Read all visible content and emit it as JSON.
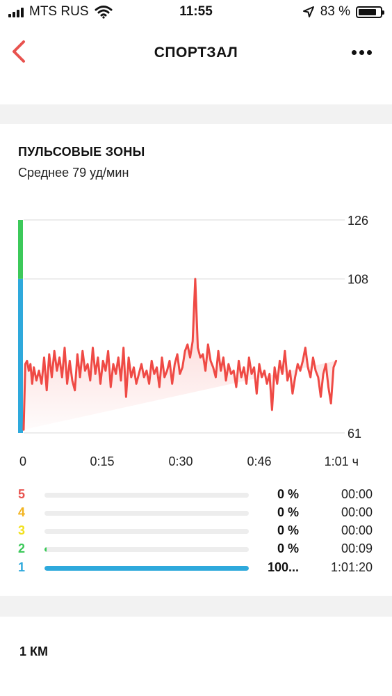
{
  "status_bar": {
    "carrier": "MTS RUS",
    "time": "11:55",
    "battery_text": "83 %",
    "battery_level": 0.83,
    "icons": [
      "signal-icon",
      "wifi-icon",
      "location-arrow-icon",
      "battery-icon"
    ]
  },
  "nav": {
    "title": "СПОРТЗАЛ",
    "back_icon": "chevron-left-icon",
    "more_icon": "ellipsis-icon",
    "accent": "#e8524e"
  },
  "heart_zones": {
    "title": "ПУЛЬСОВЫЕ ЗОНЫ",
    "average": "Среднее 79 уд/мин",
    "zones": [
      {
        "num": "5",
        "percent": "0 %",
        "time": "00:00",
        "fraction": 0.0,
        "color": "#e8524e"
      },
      {
        "num": "4",
        "percent": "0 %",
        "time": "00:00",
        "fraction": 0.0,
        "color": "#f2b31f"
      },
      {
        "num": "3",
        "percent": "0 %",
        "time": "00:00",
        "fraction": 0.0,
        "color": "#f2e11f"
      },
      {
        "num": "2",
        "percent": "0 %",
        "time": "00:09",
        "fraction": 0.0025,
        "color": "#3cc95a"
      },
      {
        "num": "1",
        "percent": "100...",
        "time": "1:01:20",
        "fraction": 1.0,
        "color": "#2ea9dc"
      }
    ]
  },
  "chart_data": {
    "type": "line",
    "title": "",
    "xlabel": "",
    "ylabel": "",
    "x_ticks": [
      "0",
      "0:15",
      "0:30",
      "0:46",
      "1:01 ч"
    ],
    "y_ticks": [
      "126",
      "108",
      "61"
    ],
    "xlim_min": [
      0,
      61.33
    ],
    "ylim": [
      61,
      126
    ],
    "grid": true,
    "line_color": "#ef4a45",
    "zone_bar": [
      {
        "from": 61,
        "to": 108,
        "color": "#2ea9dc"
      },
      {
        "from": 108,
        "to": 126,
        "color": "#3cc95a"
      }
    ],
    "series": [
      {
        "x_min": [
          0,
          0.33,
          0.67,
          1,
          1.33,
          1.67,
          2,
          2.5,
          3,
          3.5,
          4,
          4.5,
          5,
          5.5,
          6,
          6.5,
          7,
          7.5,
          8,
          8.5,
          9,
          9.5,
          10,
          10.5,
          11,
          11.5,
          12,
          12.5,
          13,
          13.5,
          14,
          14.5,
          15,
          15.5,
          16,
          16.5,
          17,
          17.5,
          18,
          18.5,
          19,
          19.5,
          20,
          20.5,
          21,
          21.5,
          22,
          22.5,
          23,
          23.5,
          24,
          24.5,
          25,
          25.5,
          26,
          26.5,
          27,
          27.5,
          28,
          28.5,
          29,
          29.5,
          30,
          30.5,
          31,
          31.5,
          32,
          32.5,
          33,
          33.5,
          34,
          34.5,
          35,
          35.5,
          36,
          36.5,
          37,
          37.5,
          38,
          38.5,
          39,
          39.5,
          40,
          40.5,
          41,
          41.5,
          42,
          42.5,
          43,
          43.5,
          44,
          44.5,
          45,
          45.5,
          46,
          46.5,
          47,
          47.5,
          48,
          48.5,
          49,
          49.5,
          50,
          50.5,
          51,
          51.5,
          52,
          52.5,
          53,
          53.5,
          54,
          54.5,
          55,
          55.5,
          56,
          56.5,
          57,
          57.5,
          58,
          58.5,
          59,
          59.5,
          60,
          60.5,
          61,
          61.33
        ],
        "y": [
          62,
          82,
          83,
          80,
          82,
          76,
          81,
          77,
          80,
          76,
          84,
          74,
          85,
          78,
          86,
          80,
          84,
          78,
          87,
          76,
          83,
          77,
          74,
          85,
          78,
          86,
          80,
          82,
          77,
          87,
          79,
          84,
          76,
          83,
          80,
          86,
          75,
          82,
          79,
          84,
          77,
          87,
          72,
          84,
          78,
          81,
          76,
          79,
          82,
          78,
          80,
          76,
          83,
          79,
          81,
          75,
          84,
          78,
          80,
          83,
          76,
          82,
          85,
          79,
          81,
          86,
          88,
          84,
          89,
          108,
          87,
          84,
          85,
          80,
          88,
          83,
          81,
          78,
          86,
          80,
          84,
          77,
          82,
          79,
          80,
          75,
          83,
          78,
          81,
          76,
          84,
          79,
          81,
          73,
          82,
          78,
          80,
          76,
          79,
          68,
          81,
          76,
          83,
          79,
          86,
          77,
          80,
          73,
          78,
          82,
          80,
          83,
          87,
          81,
          78,
          84,
          80,
          78,
          72,
          79,
          82,
          75,
          70,
          81,
          83
        ]
      }
    ]
  },
  "next_section": {
    "label": "1 КМ"
  }
}
